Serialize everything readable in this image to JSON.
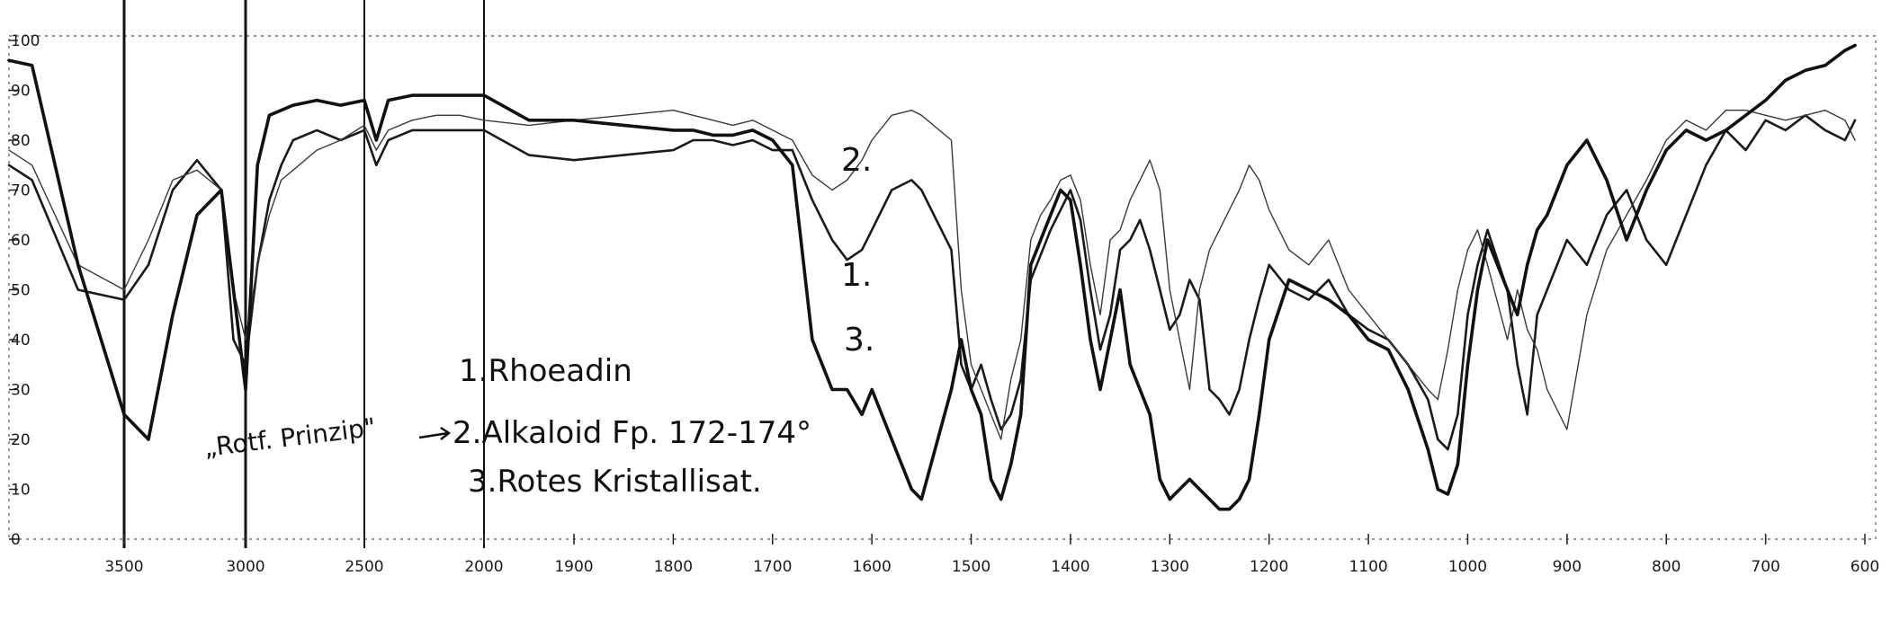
{
  "chart_data": {
    "type": "line",
    "title": "",
    "xlabel": "",
    "ylabel": "",
    "x_tick_labels": [
      "3500",
      "3000",
      "2500",
      "2000",
      "1900",
      "1800",
      "1700",
      "1600",
      "1500",
      "1400",
      "1300",
      "1200",
      "1100",
      "1000",
      "900",
      "800",
      "700",
      "600"
    ],
    "y_tick_labels": [
      "0",
      "10",
      "20",
      "30",
      "40",
      "50",
      "60",
      "70",
      "80",
      "90",
      "100"
    ],
    "ylim": [
      0,
      100
    ],
    "grid": false,
    "legend_position": "center",
    "legend": [
      "1.Rhoeadin",
      "2.Alkaloid Fp. 172-174°",
      "3.Rotes Kristallisat."
    ],
    "annotations": {
      "arrow_label": "„Rotf. Prinzip\"",
      "curve_label_1": "1.",
      "curve_label_2": "2.",
      "curve_label_3": "3."
    },
    "series": [
      {
        "name": "1.Rhoeadin",
        "x": [
          3750,
          3700,
          3600,
          3500,
          3400,
          3300,
          3200,
          3100,
          3050,
          3000,
          2950,
          2900,
          2850,
          2800,
          2700,
          2600,
          2500,
          2450,
          2400,
          2300,
          2200,
          2100,
          2000,
          1950,
          1900,
          1850,
          1800,
          1780,
          1760,
          1740,
          1720,
          1700,
          1680,
          1660,
          1640,
          1625,
          1610,
          1600,
          1580,
          1560,
          1550,
          1520,
          1510,
          1500,
          1490,
          1480,
          1470,
          1460,
          1450,
          1440,
          1430,
          1420,
          1410,
          1400,
          1390,
          1380,
          1370,
          1360,
          1350,
          1340,
          1330,
          1320,
          1310,
          1300,
          1290,
          1280,
          1270,
          1260,
          1250,
          1240,
          1230,
          1220,
          1210,
          1200,
          1180,
          1160,
          1140,
          1120,
          1100,
          1080,
          1060,
          1040,
          1030,
          1020,
          1010,
          1000,
          990,
          980,
          960,
          950,
          940,
          930,
          920,
          900,
          880,
          860,
          840,
          820,
          800,
          780,
          760,
          740,
          720,
          700,
          680,
          660,
          640,
          620,
          610
        ],
        "y": [
          75,
          72,
          50,
          48,
          55,
          70,
          76,
          70,
          40,
          35,
          55,
          68,
          75,
          80,
          82,
          80,
          82,
          75,
          80,
          82,
          82,
          82,
          82,
          77,
          76,
          77,
          78,
          80,
          80,
          79,
          80,
          78,
          78,
          68,
          60,
          56,
          58,
          62,
          70,
          72,
          70,
          58,
          35,
          30,
          35,
          28,
          22,
          25,
          32,
          52,
          57,
          62,
          66,
          70,
          64,
          50,
          38,
          45,
          58,
          60,
          64,
          58,
          50,
          42,
          45,
          52,
          48,
          30,
          28,
          25,
          30,
          40,
          48,
          55,
          50,
          48,
          52,
          45,
          42,
          40,
          35,
          28,
          20,
          18,
          25,
          45,
          55,
          62,
          50,
          35,
          25,
          45,
          50,
          60,
          55,
          65,
          70,
          60,
          55,
          65,
          75,
          82,
          78,
          84,
          82,
          85,
          82,
          80,
          84
        ]
      },
      {
        "name": "2.Alkaloid Fp. 172-174°",
        "x": [
          3750,
          3700,
          3600,
          3500,
          3400,
          3300,
          3200,
          3100,
          3050,
          3000,
          2950,
          2900,
          2850,
          2800,
          2700,
          2600,
          2500,
          2450,
          2400,
          2300,
          2200,
          2100,
          2000,
          1950,
          1900,
          1850,
          1800,
          1780,
          1760,
          1740,
          1720,
          1700,
          1680,
          1660,
          1640,
          1625,
          1610,
          1600,
          1580,
          1560,
          1550,
          1520,
          1510,
          1500,
          1490,
          1480,
          1470,
          1460,
          1450,
          1440,
          1430,
          1420,
          1410,
          1400,
          1390,
          1380,
          1370,
          1360,
          1350,
          1340,
          1330,
          1320,
          1310,
          1300,
          1290,
          1280,
          1270,
          1260,
          1250,
          1240,
          1230,
          1220,
          1210,
          1200,
          1180,
          1160,
          1140,
          1120,
          1100,
          1080,
          1060,
          1040,
          1030,
          1020,
          1010,
          1000,
          990,
          980,
          960,
          950,
          940,
          930,
          920,
          900,
          880,
          860,
          840,
          820,
          800,
          780,
          760,
          740,
          720,
          700,
          680,
          660,
          640,
          620,
          610
        ],
        "y": [
          78,
          75,
          55,
          50,
          60,
          72,
          74,
          70,
          50,
          40,
          55,
          65,
          72,
          74,
          78,
          80,
          83,
          78,
          82,
          84,
          85,
          85,
          84,
          83,
          84,
          85,
          86,
          85,
          84,
          83,
          84,
          82,
          80,
          73,
          70,
          72,
          76,
          80,
          85,
          86,
          85,
          80,
          50,
          35,
          30,
          25,
          20,
          32,
          40,
          60,
          65,
          68,
          72,
          73,
          68,
          55,
          45,
          60,
          62,
          68,
          72,
          76,
          70,
          50,
          40,
          30,
          50,
          58,
          62,
          66,
          70,
          75,
          72,
          66,
          58,
          55,
          60,
          50,
          45,
          40,
          35,
          30,
          28,
          38,
          50,
          58,
          62,
          55,
          40,
          50,
          42,
          38,
          30,
          22,
          45,
          58,
          65,
          72,
          80,
          84,
          82,
          86,
          86,
          85,
          84,
          85,
          86,
          84,
          80
        ]
      },
      {
        "name": "3.Rotes Kristallisat.",
        "x": [
          3750,
          3700,
          3600,
          3500,
          3400,
          3300,
          3200,
          3100,
          3050,
          3000,
          2950,
          2900,
          2850,
          2800,
          2700,
          2600,
          2500,
          2450,
          2400,
          2300,
          2200,
          2100,
          2000,
          1950,
          1900,
          1850,
          1800,
          1780,
          1760,
          1740,
          1720,
          1700,
          1680,
          1660,
          1640,
          1625,
          1610,
          1600,
          1580,
          1560,
          1550,
          1520,
          1510,
          1500,
          1490,
          1480,
          1470,
          1460,
          1450,
          1440,
          1430,
          1420,
          1410,
          1400,
          1390,
          1380,
          1370,
          1360,
          1350,
          1340,
          1330,
          1320,
          1310,
          1300,
          1290,
          1280,
          1270,
          1260,
          1250,
          1240,
          1230,
          1220,
          1210,
          1200,
          1180,
          1160,
          1140,
          1120,
          1100,
          1080,
          1060,
          1040,
          1030,
          1020,
          1010,
          1000,
          990,
          980,
          960,
          950,
          940,
          930,
          920,
          900,
          880,
          860,
          840,
          820,
          800,
          780,
          760,
          740,
          720,
          700,
          680,
          660,
          640,
          620,
          610
        ],
        "y": [
          96,
          95,
          55,
          25,
          20,
          45,
          65,
          70,
          50,
          30,
          75,
          85,
          86,
          87,
          88,
          87,
          88,
          80,
          88,
          89,
          89,
          89,
          89,
          84,
          84,
          83,
          82,
          82,
          81,
          81,
          82,
          80,
          75,
          40,
          30,
          30,
          25,
          30,
          20,
          10,
          8,
          30,
          40,
          30,
          25,
          12,
          8,
          15,
          25,
          55,
          60,
          65,
          70,
          68,
          55,
          40,
          30,
          40,
          50,
          35,
          30,
          25,
          12,
          8,
          10,
          12,
          10,
          8,
          6,
          6,
          8,
          12,
          25,
          40,
          52,
          50,
          48,
          45,
          40,
          38,
          30,
          18,
          10,
          9,
          15,
          35,
          50,
          60,
          50,
          45,
          55,
          62,
          65,
          75,
          80,
          72,
          60,
          70,
          78,
          82,
          80,
          82,
          85,
          88,
          92,
          94,
          95,
          98,
          99
        ]
      }
    ]
  }
}
